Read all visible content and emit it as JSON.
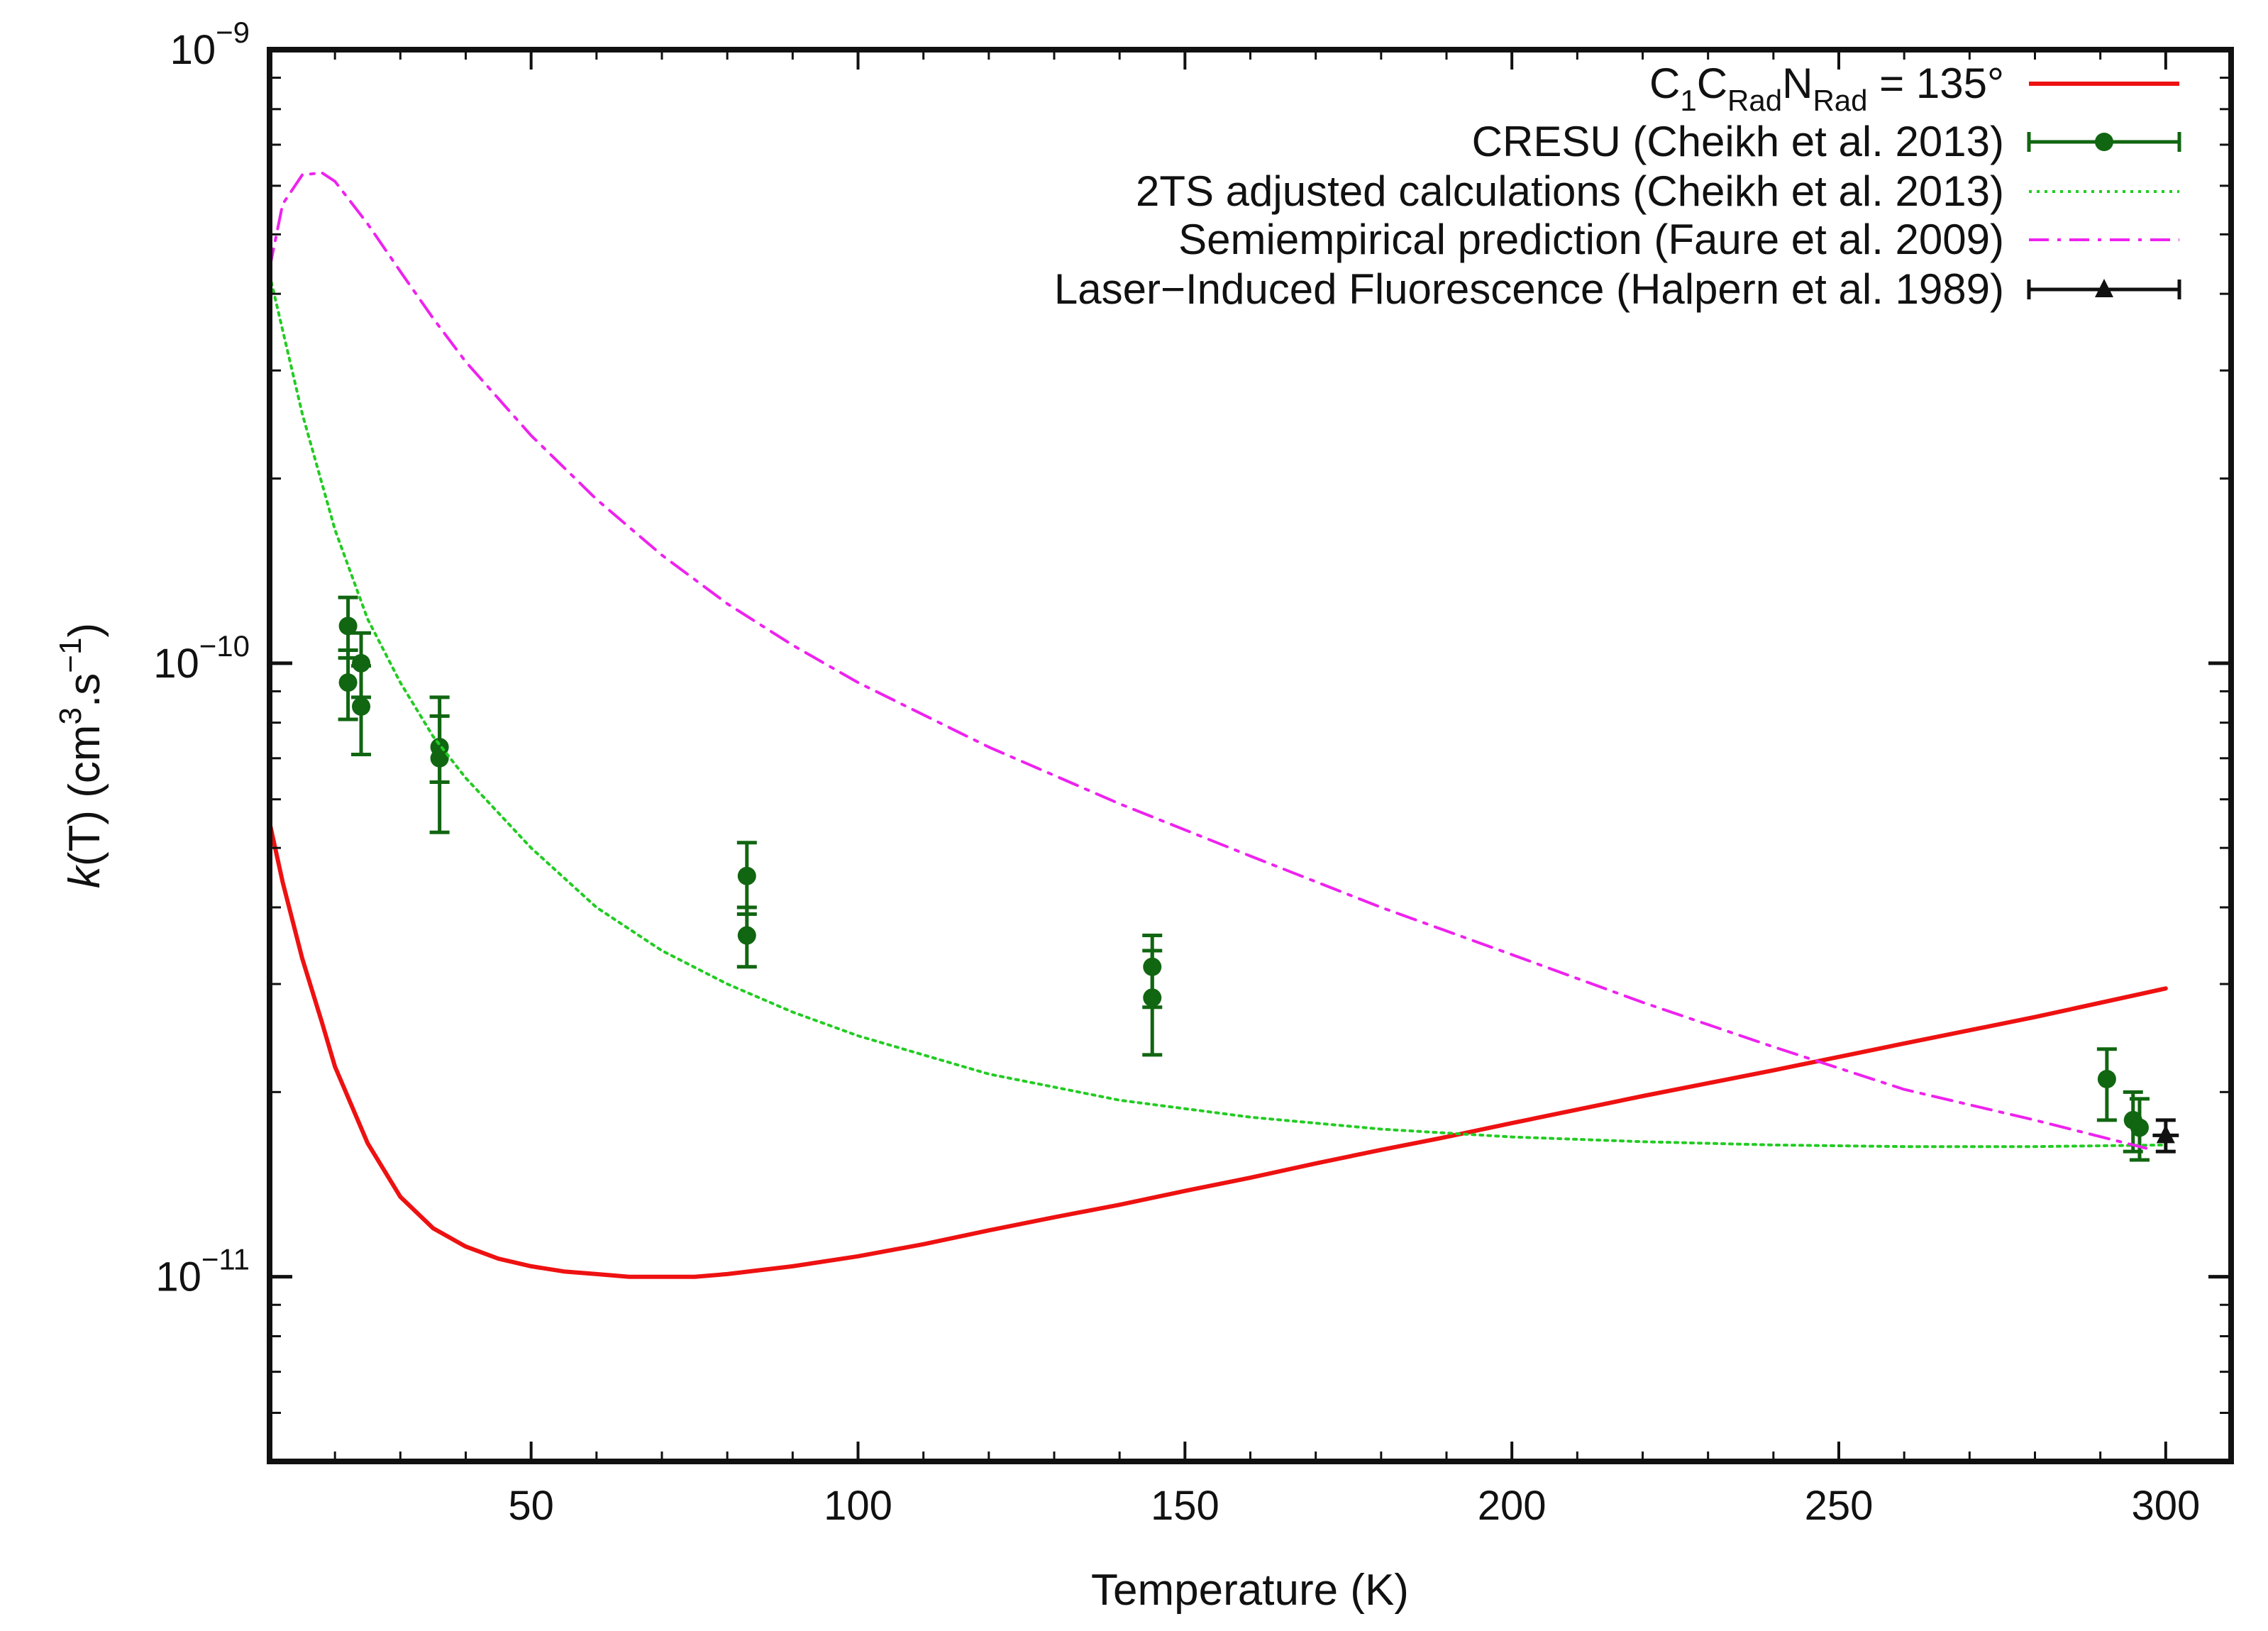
{
  "chart_data": {
    "type": "line",
    "title": "",
    "xlabel": "Temperature (K)",
    "ylabel": {
      "italic": "k",
      "rest": "(T) (cm",
      "sup1": "3",
      "mid": ".s",
      "sup2": "−1",
      "end": ")"
    },
    "xlim": [
      10,
      310
    ],
    "ylim": [
      5e-12,
      1e-09
    ],
    "yscale": "log",
    "x_ticks": [
      50,
      100,
      150,
      200,
      250,
      300
    ],
    "y_ticks": [
      {
        "value": 1e-11,
        "base": "10",
        "exp": "−11"
      },
      {
        "value": 1e-10,
        "base": "10",
        "exp": "−10"
      },
      {
        "value": 1e-09,
        "base": "10",
        "exp": "−9"
      }
    ],
    "legend_position": "top-right",
    "series": [
      {
        "name": "C1CRadNRad = 135°",
        "legend": {
          "parts": [
            {
              "t": "C"
            },
            {
              "t": "1",
              "sub": true
            },
            {
              "t": "C"
            },
            {
              "t": "Rad",
              "sub": true
            },
            {
              "t": "N"
            },
            {
              "t": "Rad",
              "sub": true
            },
            {
              "t": " = 135°"
            }
          ]
        },
        "style": "solid",
        "color": "#ee1111",
        "x": [
          10,
          12,
          15,
          18,
          20,
          25,
          30,
          35,
          40,
          45,
          50,
          55,
          60,
          65,
          70,
          75,
          80,
          90,
          100,
          110,
          120,
          130,
          140,
          150,
          160,
          170,
          180,
          190,
          200,
          220,
          240,
          260,
          280,
          300
        ],
        "y": [
          5.5e-11,
          4.4e-11,
          3.3e-11,
          2.6e-11,
          2.2e-11,
          1.65e-11,
          1.35e-11,
          1.2e-11,
          1.12e-11,
          1.07e-11,
          1.04e-11,
          1.02e-11,
          1.01e-11,
          1e-11,
          1e-11,
          1e-11,
          1.01e-11,
          1.04e-11,
          1.08e-11,
          1.13e-11,
          1.19e-11,
          1.25e-11,
          1.31e-11,
          1.38e-11,
          1.45e-11,
          1.53e-11,
          1.61e-11,
          1.69e-11,
          1.78e-11,
          1.97e-11,
          2.17e-11,
          2.4e-11,
          2.65e-11,
          2.95e-11
        ]
      },
      {
        "name": "CRESU (Cheikh et al. 2013)",
        "legend": {
          "parts": [
            {
              "t": "CRESU (Cheikh et al. 2013)"
            }
          ]
        },
        "style": "points",
        "color": "#116611",
        "points": [
          {
            "x": 22,
            "y": 1.15e-10,
            "lo": 1.02e-10,
            "hi": 1.28e-10
          },
          {
            "x": 22,
            "y": 9.3e-11,
            "lo": 8.1e-11,
            "hi": 1.05e-10
          },
          {
            "x": 24,
            "y": 1e-10,
            "lo": 8.8e-11,
            "hi": 1.12e-10
          },
          {
            "x": 24,
            "y": 8.5e-11,
            "lo": 7.1e-11,
            "hi": 9.9e-11
          },
          {
            "x": 36,
            "y": 7.3e-11,
            "lo": 6.4e-11,
            "hi": 8.2e-11
          },
          {
            "x": 36,
            "y": 7e-11,
            "lo": 5.3e-11,
            "hi": 8.8e-11
          },
          {
            "x": 83,
            "y": 4.5e-11,
            "lo": 3.9e-11,
            "hi": 5.1e-11
          },
          {
            "x": 83,
            "y": 3.6e-11,
            "lo": 3.2e-11,
            "hi": 4e-11
          },
          {
            "x": 145,
            "y": 3.2e-11,
            "lo": 2.75e-11,
            "hi": 3.6e-11
          },
          {
            "x": 145,
            "y": 2.85e-11,
            "lo": 2.3e-11,
            "hi": 3.4e-11
          },
          {
            "x": 291,
            "y": 2.1e-11,
            "lo": 1.8e-11,
            "hi": 2.35e-11
          },
          {
            "x": 295,
            "y": 1.8e-11,
            "lo": 1.6e-11,
            "hi": 2e-11
          },
          {
            "x": 296,
            "y": 1.75e-11,
            "lo": 1.55e-11,
            "hi": 1.95e-11
          }
        ]
      },
      {
        "name": "2TS adjusted calculations (Cheikh et al. 2013)",
        "legend": {
          "parts": [
            {
              "t": "2TS adjusted calculations (Cheikh et al. 2013)"
            }
          ]
        },
        "style": "dotted",
        "color": "#22cc22",
        "x": [
          10,
          15,
          20,
          25,
          30,
          35,
          40,
          50,
          60,
          70,
          80,
          90,
          100,
          120,
          140,
          160,
          180,
          200,
          220,
          240,
          260,
          280,
          300
        ],
        "y": [
          4.3e-10,
          2.55e-10,
          1.65e-10,
          1.18e-10,
          9.3e-11,
          7.6e-11,
          6.5e-11,
          5e-11,
          4e-11,
          3.4e-11,
          3e-11,
          2.7e-11,
          2.47e-11,
          2.14e-11,
          1.94e-11,
          1.82e-11,
          1.74e-11,
          1.69e-11,
          1.66e-11,
          1.64e-11,
          1.63e-11,
          1.63e-11,
          1.64e-11
        ]
      },
      {
        "name": "Semiempirical prediction (Faure et al. 2009)",
        "legend": {
          "parts": [
            {
              "t": "Semiempirical prediction (Faure et al. 2009)"
            }
          ]
        },
        "style": "dashdot",
        "color": "#ee22ee",
        "x": [
          10,
          12,
          15,
          18,
          20,
          25,
          30,
          35,
          40,
          50,
          60,
          70,
          80,
          90,
          100,
          120,
          140,
          160,
          180,
          200,
          220,
          240,
          260,
          280,
          297
        ],
        "y": [
          4.4e-10,
          5.6e-10,
          6.25e-10,
          6.3e-10,
          6.1e-10,
          5.2e-10,
          4.35e-10,
          3.65e-10,
          3.1e-10,
          2.35e-10,
          1.85e-10,
          1.5e-10,
          1.25e-10,
          1.07e-10,
          9.3e-11,
          7.3e-11,
          5.9e-11,
          4.85e-11,
          4e-11,
          3.35e-11,
          2.8e-11,
          2.37e-11,
          2.02e-11,
          1.8e-11,
          1.62e-11
        ]
      },
      {
        "name": "Laser–Induced Fluorescence (Halpern et al. 1989)",
        "legend": {
          "parts": [
            {
              "t": "Laser−Induced Fluorescence (Halpern et al. 1989)"
            }
          ]
        },
        "style": "points",
        "marker": "triangle",
        "color": "#111111",
        "points": [
          {
            "x": 300,
            "y": 1.7e-11,
            "lo": 1.6e-11,
            "hi": 1.8e-11,
            "xlo": 298,
            "xhi": 302
          }
        ]
      }
    ]
  }
}
